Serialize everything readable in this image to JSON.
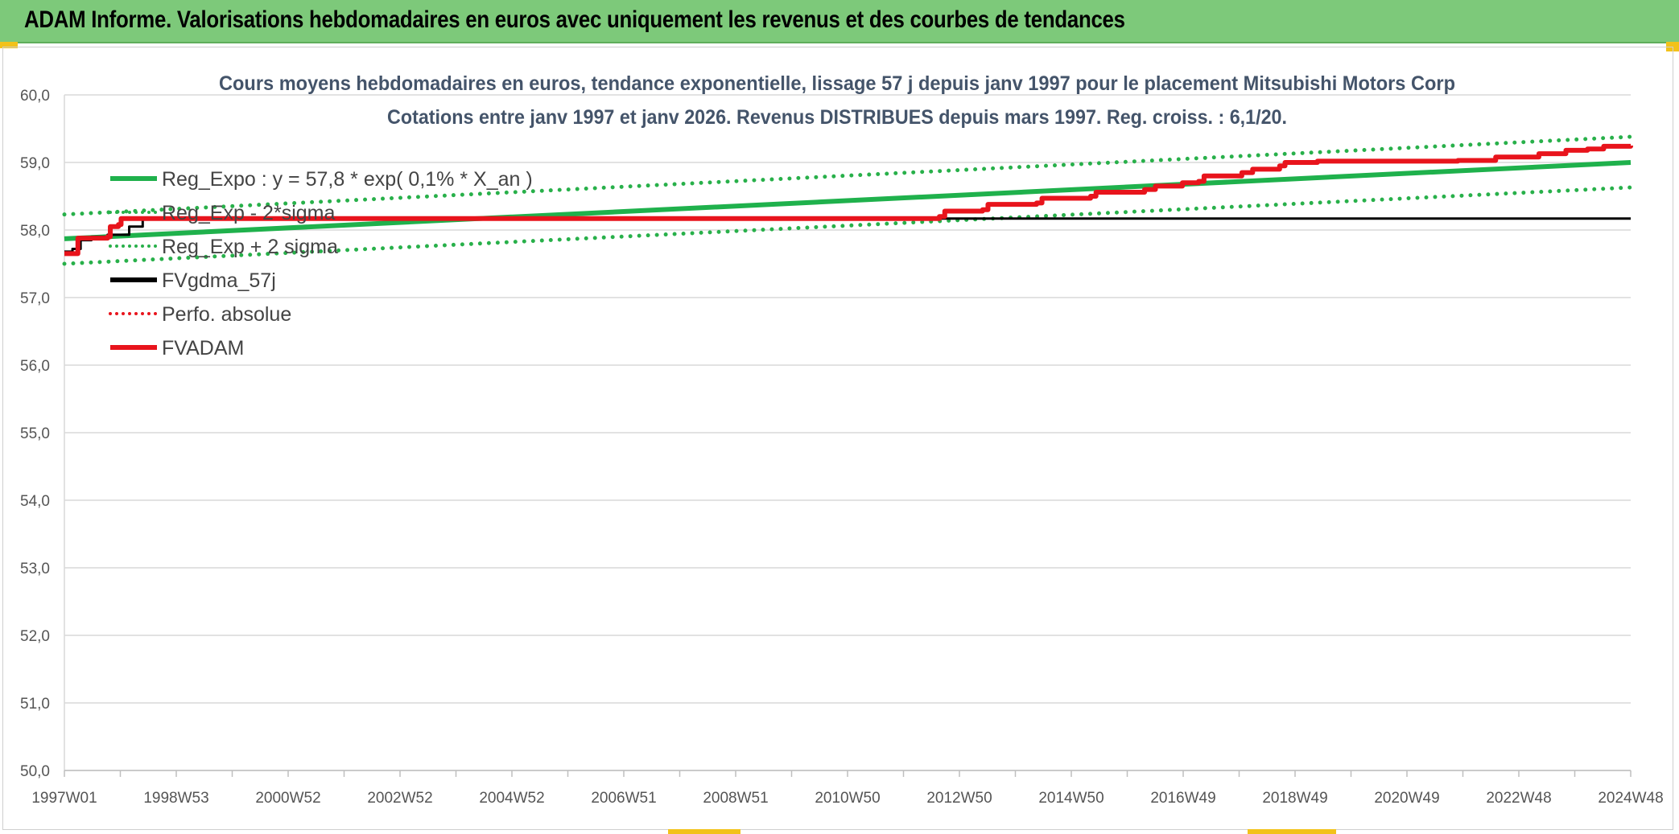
{
  "header": {
    "title": "ADAM Informe. Valorisations hebdomadaires en euros avec uniquement les revenus et des courbes de tendances"
  },
  "chart_data": {
    "type": "line",
    "title": "Cours moyens hebdomadaires en euros, tendance exponentielle, lissage 57 j depuis janv 1997 pour le placement Mitsubishi Motors Corp",
    "subtitle": "Cotations entre janv 1997 et janv 2026. Revenus DISTRIBUES depuis mars 1997. Reg. croiss. : 6,1/20.",
    "xlabel": "",
    "ylabel": "",
    "ylim": [
      50,
      60
    ],
    "yticks": [
      "50,0",
      "51,0",
      "52,0",
      "53,0",
      "54,0",
      "55,0",
      "56,0",
      "57,0",
      "58,0",
      "59,0",
      "60,0"
    ],
    "x_categories": [
      "1997W01",
      "1998W53",
      "2000W52",
      "2002W52",
      "2004W52",
      "2006W51",
      "2008W51",
      "2010W50",
      "2012W50",
      "2014W50",
      "2016W49",
      "2018W49",
      "2020W49",
      "2022W48",
      "2024W48"
    ],
    "x_range_years": [
      1997.0,
      2026.0
    ],
    "colors": {
      "green": "#1fb14c",
      "green_dotted": "#28b04a",
      "black": "#000000",
      "red": "#e8141c",
      "grid": "#d9d9d9",
      "tick_text": "#555555",
      "title_text": "#44546a"
    },
    "series": [
      {
        "name": "Reg_Expo : y = 57,8 * exp( 0,1% *  X_an )",
        "style": "solid",
        "color": "#1fb14c",
        "points": [
          [
            1997.0,
            57.87
          ],
          [
            2026.0,
            59.0
          ]
        ]
      },
      {
        "name": "Reg_Exp - 2*sigma",
        "style": "dotted",
        "color": "#28b04a",
        "points": [
          [
            1997.0,
            57.5
          ],
          [
            2026.0,
            58.63
          ]
        ]
      },
      {
        "name": "Reg_Exp + 2 sigma",
        "style": "dotted",
        "color": "#28b04a",
        "points": [
          [
            1997.0,
            58.23
          ],
          [
            2026.0,
            59.38
          ]
        ]
      },
      {
        "name": "FVgdma_57j",
        "style": "solid",
        "color": "#000000",
        "points": [
          [
            1997.0,
            57.68
          ],
          [
            1997.15,
            57.72
          ],
          [
            1997.3,
            57.85
          ],
          [
            1997.5,
            57.9
          ],
          [
            1997.8,
            57.93
          ],
          [
            1998.2,
            58.05
          ],
          [
            1998.45,
            58.17
          ],
          [
            2000.0,
            58.17
          ],
          [
            2026.0,
            58.17
          ]
        ]
      },
      {
        "name": "Perfo. absolue",
        "style": "dotted",
        "color": "#e8141c",
        "points": []
      },
      {
        "name": "FVADAM",
        "style": "solid",
        "color": "#e8141c",
        "points": [
          [
            1997.0,
            57.65
          ],
          [
            1997.2,
            57.65
          ],
          [
            1997.25,
            57.88
          ],
          [
            1997.8,
            57.9
          ],
          [
            1997.85,
            58.05
          ],
          [
            1998.0,
            58.08
          ],
          [
            1998.05,
            58.17
          ],
          [
            2012.8,
            58.17
          ],
          [
            2013.2,
            58.2
          ],
          [
            2013.3,
            58.28
          ],
          [
            2014.0,
            58.3
          ],
          [
            2014.1,
            58.38
          ],
          [
            2015.0,
            58.4
          ],
          [
            2015.1,
            58.47
          ],
          [
            2016.0,
            58.5
          ],
          [
            2016.1,
            58.56
          ],
          [
            2017.0,
            58.6
          ],
          [
            2017.2,
            58.65
          ],
          [
            2017.7,
            58.7
          ],
          [
            2018.0,
            58.72
          ],
          [
            2018.1,
            58.8
          ],
          [
            2018.8,
            58.85
          ],
          [
            2019.0,
            58.9
          ],
          [
            2019.5,
            58.95
          ],
          [
            2019.6,
            59.0
          ],
          [
            2020.2,
            59.02
          ],
          [
            2022.8,
            59.03
          ],
          [
            2023.5,
            59.08
          ],
          [
            2024.3,
            59.13
          ],
          [
            2024.8,
            59.18
          ],
          [
            2025.2,
            59.2
          ],
          [
            2025.5,
            59.24
          ],
          [
            2026.0,
            59.25
          ]
        ]
      }
    ],
    "legend_position": "top-left"
  }
}
